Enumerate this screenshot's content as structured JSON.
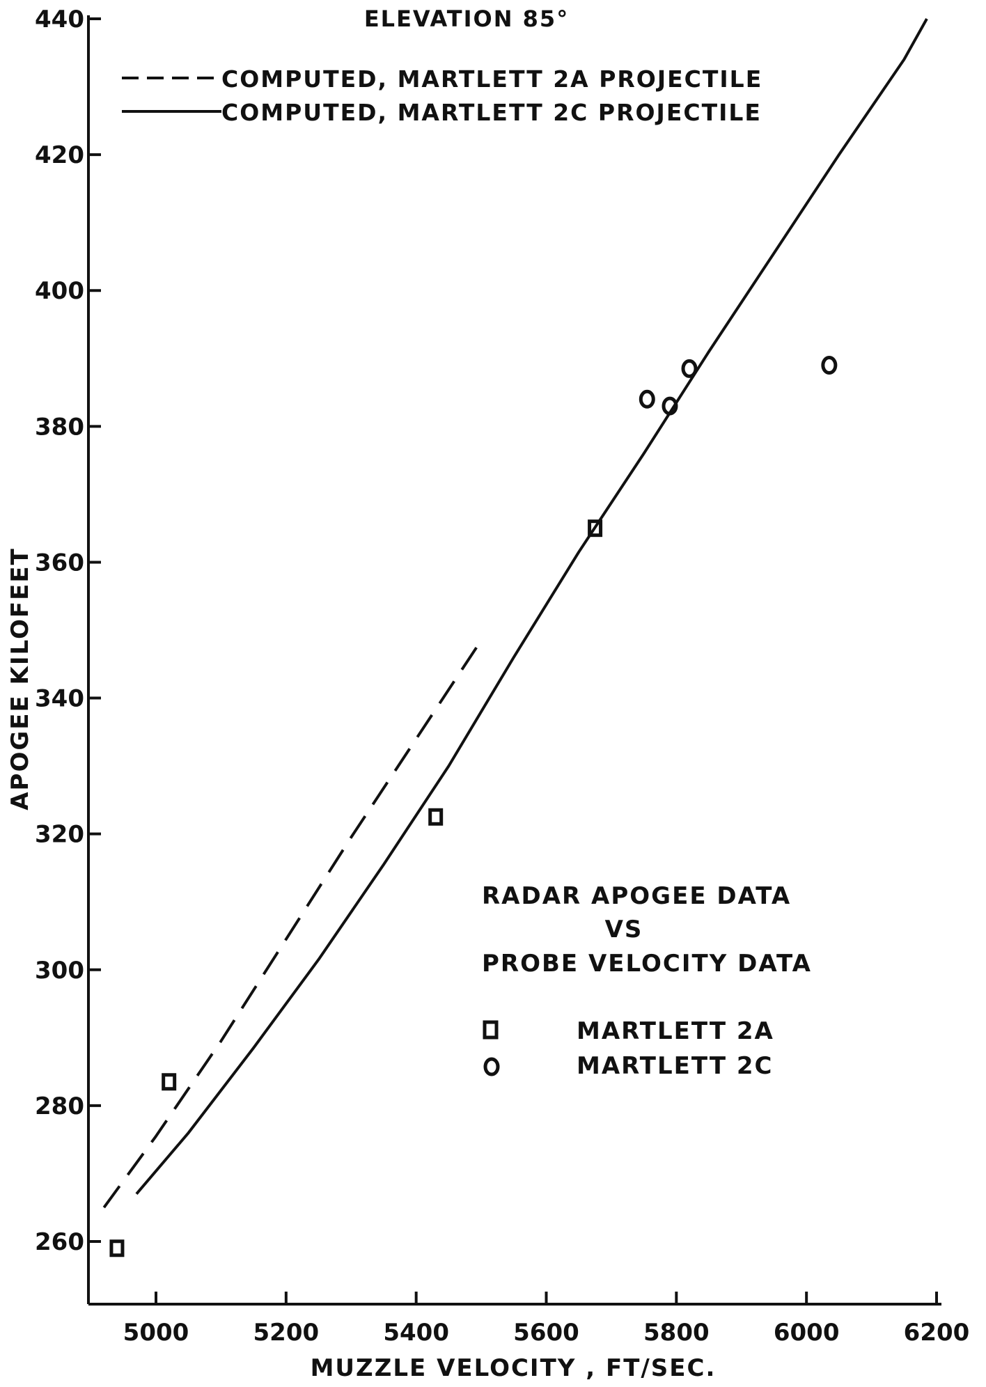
{
  "chart_data": {
    "type": "scatter",
    "title": "ELEVATION 85°",
    "xlabel": "MUZZLE VELOCITY , FT/SEC.",
    "ylabel": "APOGEE KILOFEET",
    "xlim": [
      4900,
      6200
    ],
    "ylim": [
      250,
      440
    ],
    "x_ticks": [
      5000,
      5200,
      5400,
      5600,
      5800,
      6000,
      6200
    ],
    "y_ticks": [
      260,
      280,
      300,
      320,
      340,
      360,
      380,
      400,
      420,
      440
    ],
    "grid": false,
    "legend_placement": "top-left",
    "lines": [
      {
        "name": "COMPUTED, MARTLETT 2A PROJECTILE",
        "style": "dashed",
        "points": [
          [
            4920,
            265
          ],
          [
            5000,
            275.5
          ],
          [
            5100,
            289.5
          ],
          [
            5200,
            304.5
          ],
          [
            5300,
            319.5
          ],
          [
            5400,
            334
          ],
          [
            5500,
            348.5
          ]
        ]
      },
      {
        "name": "COMPUTED, MARTLETT 2C PROJECTILE",
        "style": "solid",
        "points": [
          [
            4970,
            267
          ],
          [
            5050,
            276
          ],
          [
            5150,
            288.5
          ],
          [
            5250,
            301.5
          ],
          [
            5350,
            315.5
          ],
          [
            5450,
            330
          ],
          [
            5550,
            346
          ],
          [
            5650,
            361.5
          ],
          [
            5750,
            376
          ],
          [
            5850,
            391
          ],
          [
            5950,
            405.5
          ],
          [
            6050,
            420
          ],
          [
            6150,
            434
          ],
          [
            6185,
            440
          ]
        ]
      }
    ],
    "series": [
      {
        "name": "MARTLETT 2A",
        "marker": "square",
        "points": [
          [
            4940,
            259
          ],
          [
            5020,
            283.5
          ],
          [
            5430,
            322.5
          ],
          [
            5675,
            365
          ]
        ]
      },
      {
        "name": "MARTLETT 2C",
        "marker": "circle",
        "points": [
          [
            5755,
            384
          ],
          [
            5790,
            383
          ],
          [
            5820,
            388.5
          ],
          [
            6035,
            389
          ]
        ]
      }
    ],
    "annotation": {
      "lines": [
        "RADAR APOGEE DATA",
        "VS",
        "PROBE VELOCITY DATA"
      ],
      "legend": [
        {
          "marker": "square",
          "label": "MARTLETT 2A"
        },
        {
          "marker": "circle",
          "label": "MARTLETT 2C"
        }
      ]
    }
  }
}
